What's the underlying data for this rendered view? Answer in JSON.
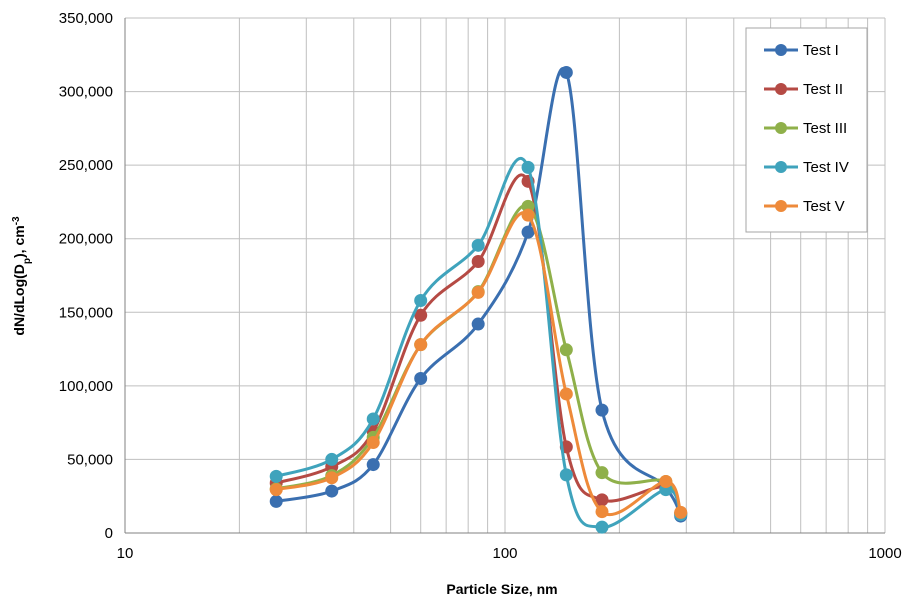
{
  "chart_data": {
    "type": "line",
    "title": "",
    "xlabel": "Particle Size, nm",
    "ylabel_main": "dN/dLog(D",
    "ylabel_sub": "p",
    "ylabel_tail": "),  cm",
    "ylabel_sup": "-3",
    "x_scale": "log",
    "xlim": [
      10,
      1000
    ],
    "ylim": [
      0,
      350000
    ],
    "x_ticks": [
      10,
      100,
      1000
    ],
    "x_tick_labels": [
      "10",
      "100",
      "1000"
    ],
    "y_ticks": [
      0,
      50000,
      100000,
      150000,
      200000,
      250000,
      300000,
      350000
    ],
    "y_tick_labels": [
      "0",
      "50,000",
      "100,000",
      "150,000",
      "200,000",
      "250,000",
      "300,000",
      "350,000"
    ],
    "grid": true,
    "legend_position": "top-right",
    "x": [
      25,
      35,
      45,
      60,
      85,
      115,
      145,
      180,
      265,
      290
    ],
    "series": [
      {
        "name": "Test I",
        "color": "#3a6fb0",
        "values": [
          21500,
          28500,
          46500,
          105000,
          142000,
          204500,
          313000,
          83500,
          31000,
          11500
        ]
      },
      {
        "name": "Test II",
        "color": "#b54a44",
        "values": [
          34000,
          45000,
          69000,
          148000,
          184500,
          239000,
          58500,
          22500,
          31500,
          13500
        ]
      },
      {
        "name": "Test III",
        "color": "#8fb04a",
        "values": [
          30000,
          39000,
          65000,
          128000,
          164000,
          222000,
          124500,
          41000,
          35000,
          13000
        ]
      },
      {
        "name": "Test IV",
        "color": "#3fa3bc",
        "values": [
          38500,
          50000,
          77500,
          158000,
          195500,
          248500,
          39500,
          4000,
          29500,
          12500
        ]
      },
      {
        "name": "Test V",
        "color": "#ee8a3a",
        "values": [
          29500,
          37500,
          61500,
          128000,
          163500,
          216000,
          94500,
          14500,
          35000,
          14000
        ]
      }
    ]
  }
}
